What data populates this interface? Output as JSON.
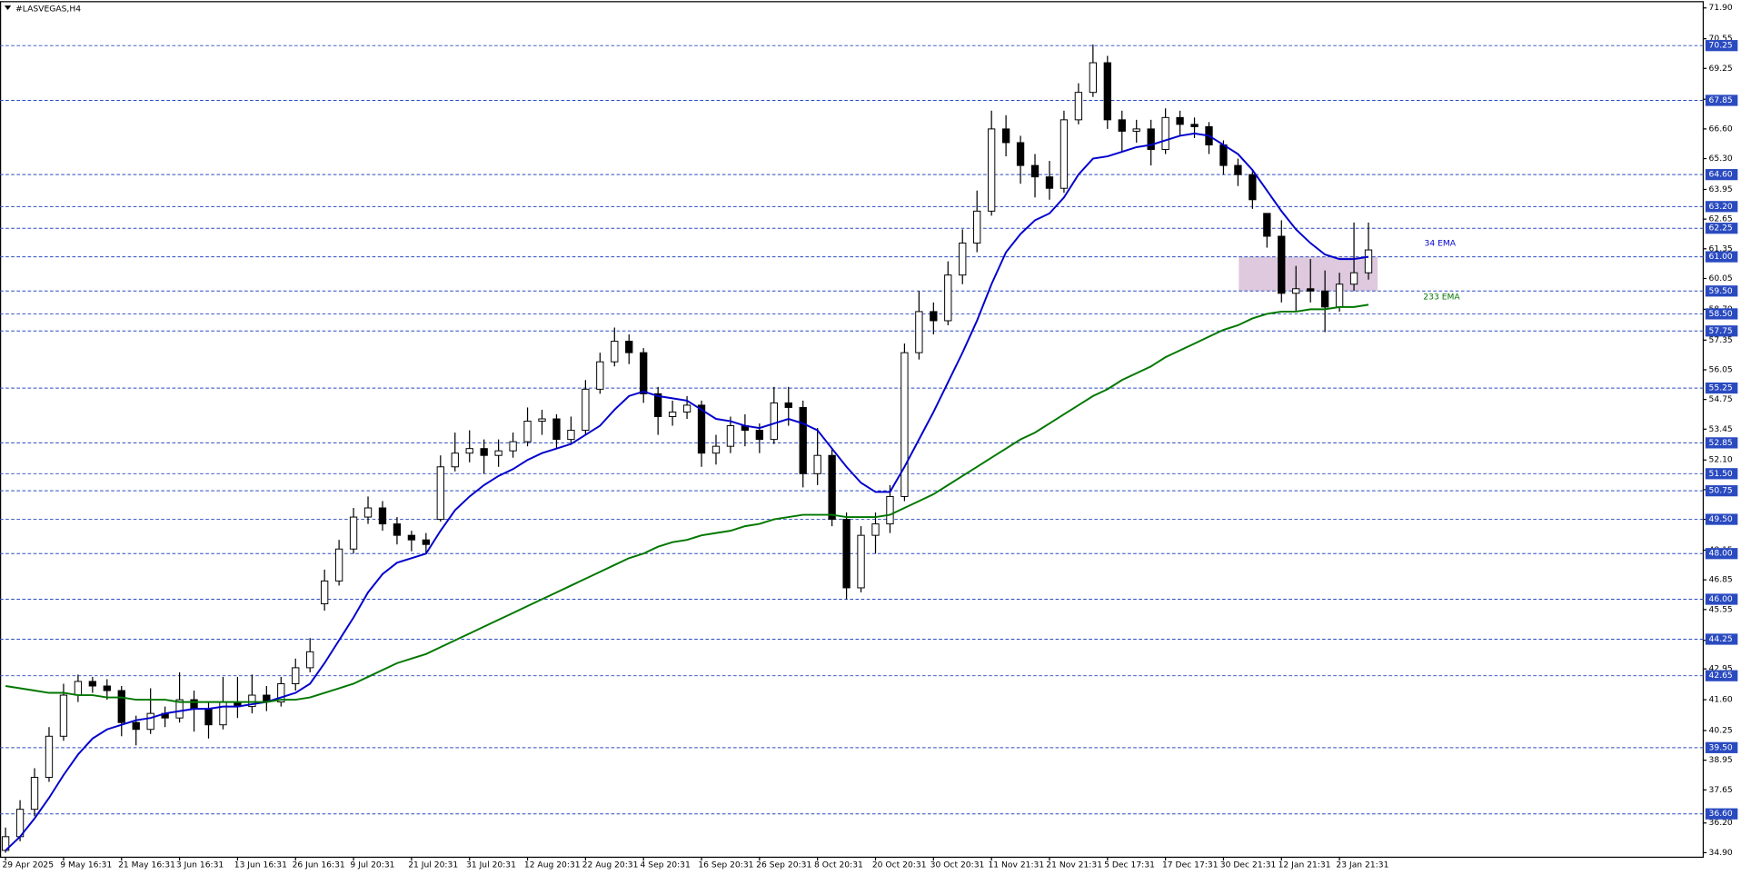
{
  "chart_data": {
    "type": "candlestick",
    "title": "#LASVEGAS,H4",
    "categories": [
      "29 Apr 2025",
      null,
      null,
      null,
      "9 May 16:31",
      null,
      null,
      null,
      "21 May 16:31",
      null,
      null,
      null,
      "3 Jun 16:31",
      null,
      null,
      null,
      "13 Jun 16:31",
      null,
      null,
      null,
      "26 Jun 16:31",
      null,
      null,
      null,
      "9 Jul 20:31",
      null,
      null,
      null,
      "21 Jul 20:31",
      null,
      null,
      null,
      "31 Jul 20:31",
      null,
      null,
      null,
      "12 Aug 20:31",
      null,
      null,
      null,
      "22 Aug 20:31",
      null,
      null,
      null,
      "4 Sep 20:31",
      null,
      null,
      null,
      "16 Sep 20:31",
      null,
      null,
      null,
      "26 Sep 20:31",
      null,
      null,
      null,
      "8 Oct 20:31",
      null,
      null,
      null,
      "20 Oct 20:31",
      null,
      null,
      null,
      "30 Oct 20:31",
      null,
      null,
      null,
      "11 Nov 21:31",
      null,
      null,
      null,
      "21 Nov 21:31",
      null,
      null,
      null,
      "5 Dec 17:31",
      null,
      null,
      null,
      "17 Dec 17:31",
      null,
      null,
      null,
      "30 Dec 21:31",
      null,
      null,
      null,
      "12 Jan 21:31",
      null,
      null,
      null,
      "23 Jan 21:31",
      null,
      null
    ],
    "open": [
      35.0,
      35.6,
      36.8,
      38.2,
      40.0,
      41.8,
      42.4,
      42.2,
      42.0,
      40.6,
      40.3,
      41.0,
      40.8,
      41.6,
      41.2,
      40.5,
      41.5,
      41.3,
      41.8,
      41.5,
      42.3,
      43.0,
      45.8,
      46.8,
      48.2,
      49.6,
      50.0,
      49.3,
      48.8,
      48.6,
      49.5,
      51.8,
      52.4,
      52.6,
      52.3,
      52.5,
      52.9,
      53.8,
      53.9,
      53.0,
      53.4,
      55.2,
      56.4,
      57.3,
      56.8,
      55.0,
      54.0,
      54.2,
      54.5,
      52.4,
      52.7,
      53.6,
      53.4,
      53.0,
      54.6,
      54.4,
      51.5,
      52.3,
      49.5,
      46.5,
      48.8,
      49.3,
      50.5,
      56.8,
      58.6,
      58.2,
      60.2,
      61.6,
      63.0,
      66.6,
      66.0,
      65.0,
      64.5,
      64.0,
      67.0,
      68.2,
      69.5,
      67.0,
      66.5,
      66.6,
      65.7,
      67.1,
      66.8,
      66.7,
      65.9,
      65.0,
      64.6,
      62.9,
      61.9,
      59.4,
      59.6,
      59.5,
      58.8,
      59.8,
      60.3
    ],
    "high": [
      36.0,
      37.2,
      38.6,
      40.4,
      42.3,
      42.7,
      42.6,
      42.5,
      42.2,
      40.9,
      42.1,
      41.3,
      42.8,
      42.0,
      41.5,
      42.6,
      42.6,
      42.7,
      42.2,
      42.6,
      43.4,
      44.3,
      47.3,
      48.6,
      50.0,
      50.5,
      50.3,
      49.6,
      49.0,
      48.9,
      52.3,
      53.3,
      53.4,
      53.0,
      53.0,
      53.3,
      54.4,
      54.3,
      54.1,
      54.0,
      55.6,
      56.8,
      57.9,
      57.6,
      57.0,
      55.3,
      54.7,
      54.9,
      54.7,
      53.2,
      54.0,
      54.1,
      53.7,
      55.3,
      55.3,
      54.7,
      53.5,
      52.6,
      49.8,
      49.2,
      49.8,
      51.0,
      57.2,
      59.5,
      59.0,
      60.8,
      62.2,
      63.9,
      67.4,
      67.2,
      66.3,
      65.5,
      65.2,
      67.4,
      68.6,
      70.3,
      69.8,
      67.4,
      67.0,
      67.0,
      67.5,
      67.4,
      67.1,
      66.9,
      66.1,
      65.3,
      64.8,
      62.9,
      62.6,
      60.6,
      60.9,
      60.4,
      60.3,
      62.5,
      62.5
    ],
    "low": [
      34.9,
      35.4,
      36.5,
      38.0,
      39.8,
      41.5,
      41.9,
      41.6,
      40.0,
      39.6,
      40.1,
      40.4,
      40.6,
      40.2,
      39.9,
      40.3,
      40.8,
      41.0,
      41.1,
      41.3,
      42.0,
      42.8,
      45.5,
      46.6,
      48.0,
      49.3,
      49.0,
      48.4,
      48.1,
      48.0,
      49.4,
      51.6,
      52.0,
      51.5,
      51.8,
      52.2,
      52.7,
      53.2,
      52.6,
      52.8,
      53.2,
      55.0,
      56.2,
      56.3,
      54.6,
      53.2,
      53.6,
      53.9,
      51.8,
      51.9,
      52.4,
      52.7,
      52.4,
      52.8,
      53.6,
      50.9,
      51.0,
      49.2,
      46.0,
      46.3,
      48.0,
      48.9,
      50.3,
      56.5,
      57.6,
      58.0,
      59.8,
      61.2,
      62.8,
      65.4,
      64.2,
      63.6,
      63.5,
      63.8,
      66.8,
      68.0,
      66.6,
      65.6,
      66.0,
      65.0,
      65.5,
      66.3,
      66.2,
      65.5,
      64.6,
      64.1,
      63.1,
      61.4,
      59.0,
      58.6,
      59.0,
      57.7,
      58.6,
      59.5,
      60.0
    ],
    "close": [
      35.6,
      36.8,
      38.2,
      40.0,
      41.8,
      42.4,
      42.2,
      42.0,
      40.6,
      40.3,
      41.0,
      40.8,
      41.6,
      41.2,
      40.5,
      41.5,
      41.3,
      41.8,
      41.5,
      42.3,
      43.0,
      43.7,
      46.8,
      48.2,
      49.6,
      50.0,
      49.3,
      48.8,
      48.6,
      48.4,
      51.8,
      52.4,
      52.6,
      52.3,
      52.5,
      52.9,
      53.8,
      53.9,
      53.0,
      53.4,
      55.2,
      56.4,
      57.3,
      56.8,
      55.0,
      54.0,
      54.2,
      54.5,
      52.4,
      52.7,
      53.6,
      53.4,
      53.0,
      54.6,
      54.4,
      51.5,
      52.3,
      49.5,
      46.5,
      48.8,
      49.3,
      50.5,
      56.8,
      58.6,
      58.2,
      60.2,
      61.6,
      63.0,
      66.6,
      66.0,
      65.0,
      64.5,
      64.0,
      67.0,
      68.2,
      69.5,
      67.0,
      66.5,
      66.6,
      65.7,
      67.1,
      66.8,
      66.7,
      65.9,
      65.0,
      64.6,
      63.5,
      61.9,
      59.4,
      59.6,
      59.5,
      58.8,
      59.8,
      60.3,
      61.3
    ],
    "up_color": "#ffffff",
    "down_color": "#000000",
    "series": [
      {
        "name": "34 EMA",
        "color": "#0000cc",
        "values": [
          35.0,
          35.6,
          36.4,
          37.3,
          38.3,
          39.2,
          39.9,
          40.3,
          40.5,
          40.7,
          40.8,
          41.0,
          41.1,
          41.2,
          41.2,
          41.3,
          41.3,
          41.4,
          41.5,
          41.7,
          41.9,
          42.3,
          43.2,
          44.2,
          45.2,
          46.3,
          47.1,
          47.6,
          47.8,
          48.0,
          49.0,
          49.9,
          50.5,
          51.0,
          51.4,
          51.7,
          52.1,
          52.4,
          52.6,
          52.8,
          53.2,
          53.6,
          54.3,
          54.9,
          55.1,
          54.9,
          54.8,
          54.7,
          54.3,
          53.9,
          53.8,
          53.6,
          53.5,
          53.7,
          53.9,
          53.7,
          53.4,
          52.6,
          51.8,
          51.1,
          50.7,
          50.7,
          51.8,
          53.0,
          54.2,
          55.5,
          56.8,
          58.2,
          59.8,
          61.2,
          62.0,
          62.6,
          62.9,
          63.6,
          64.6,
          65.3,
          65.4,
          65.6,
          65.8,
          65.9,
          66.1,
          66.3,
          66.4,
          66.3,
          65.9,
          65.5,
          64.8,
          63.9,
          63.0,
          62.2,
          61.6,
          61.1,
          60.9,
          60.9,
          61.0
        ]
      },
      {
        "name": "233 EMA",
        "color": "#007700",
        "values": [
          42.2,
          42.1,
          42.0,
          41.9,
          41.9,
          41.8,
          41.8,
          41.7,
          41.7,
          41.6,
          41.6,
          41.6,
          41.5,
          41.5,
          41.5,
          41.5,
          41.5,
          41.5,
          41.5,
          41.6,
          41.6,
          41.7,
          41.9,
          42.1,
          42.3,
          42.6,
          42.9,
          43.2,
          43.4,
          43.6,
          43.9,
          44.2,
          44.5,
          44.8,
          45.1,
          45.4,
          45.7,
          46.0,
          46.3,
          46.6,
          46.9,
          47.2,
          47.5,
          47.8,
          48.0,
          48.3,
          48.5,
          48.6,
          48.8,
          48.9,
          49.0,
          49.2,
          49.3,
          49.5,
          49.6,
          49.7,
          49.7,
          49.7,
          49.6,
          49.6,
          49.6,
          49.7,
          50.0,
          50.3,
          50.6,
          51.0,
          51.4,
          51.8,
          52.2,
          52.6,
          53.0,
          53.3,
          53.7,
          54.1,
          54.5,
          54.9,
          55.2,
          55.6,
          55.9,
          56.2,
          56.6,
          56.9,
          57.2,
          57.5,
          57.8,
          58.0,
          58.3,
          58.5,
          58.6,
          58.6,
          58.7,
          58.7,
          58.8,
          58.8,
          58.9
        ]
      }
    ],
    "ylim": [
      34.7,
      72.15
    ],
    "yticks": [
      {
        "value": 71.9,
        "label": "71.90"
      },
      {
        "value": 70.55,
        "label": "70.55"
      },
      {
        "value": 69.25,
        "label": "69.25"
      },
      {
        "value": 67.9,
        "label": "67.90"
      },
      {
        "value": 66.6,
        "label": "66.60"
      },
      {
        "value": 65.3,
        "label": "65.30"
      },
      {
        "value": 63.95,
        "label": "63.95"
      },
      {
        "value": 62.65,
        "label": "62.65"
      },
      {
        "value": 61.35,
        "label": "61.35"
      },
      {
        "value": 60.05,
        "label": "60.05"
      },
      {
        "value": 58.7,
        "label": "58.70"
      },
      {
        "value": 57.35,
        "label": "57.35"
      },
      {
        "value": 56.05,
        "label": "56.05"
      },
      {
        "value": 54.75,
        "label": "54.75"
      },
      {
        "value": 53.45,
        "label": "53.45"
      },
      {
        "value": 52.1,
        "label": "52.10"
      },
      {
        "value": 50.8,
        "label": "50.80"
      },
      {
        "value": 49.5,
        "label": "49.50"
      },
      {
        "value": 48.15,
        "label": "48.15"
      },
      {
        "value": 46.85,
        "label": "46.85"
      },
      {
        "value": 45.55,
        "label": "45.55"
      },
      {
        "value": 44.2,
        "label": "44.20"
      },
      {
        "value": 42.95,
        "label": "42.95"
      },
      {
        "value": 41.6,
        "label": "41.60"
      },
      {
        "value": 40.25,
        "label": "40.25"
      },
      {
        "value": 38.95,
        "label": "38.95"
      },
      {
        "value": 37.65,
        "label": "37.65"
      },
      {
        "value": 36.2,
        "label": "36.20"
      },
      {
        "value": 34.9,
        "label": "34.90"
      }
    ],
    "levels": [
      {
        "value": 70.25,
        "label": "70.25"
      },
      {
        "value": 67.85,
        "label": "67.85"
      },
      {
        "value": 64.6,
        "label": "64.60"
      },
      {
        "value": 63.2,
        "label": "63.20"
      },
      {
        "value": 62.25,
        "label": "62.25"
      },
      {
        "value": 61.0,
        "label": "61.00"
      },
      {
        "value": 59.5,
        "label": "59.50"
      },
      {
        "value": 58.5,
        "label": "58.50"
      },
      {
        "value": 57.75,
        "label": "57.75"
      },
      {
        "value": 55.25,
        "label": "55.25"
      },
      {
        "value": 52.85,
        "label": "52.85"
      },
      {
        "value": 51.5,
        "label": "51.50"
      },
      {
        "value": 50.75,
        "label": "50.75"
      },
      {
        "value": 49.5,
        "label": "49.50"
      },
      {
        "value": 48.0,
        "label": "48.00"
      },
      {
        "value": 46.0,
        "label": "46.00"
      },
      {
        "value": 44.25,
        "label": "44.25"
      },
      {
        "value": 42.65,
        "label": "42.65"
      },
      {
        "value": 39.5,
        "label": "39.50"
      },
      {
        "value": 36.6,
        "label": "36.60"
      }
    ],
    "level_color": "#2a4ac0",
    "zone": {
      "top": 61.0,
      "bottom": 59.5,
      "color": "#d8bfd8"
    }
  }
}
